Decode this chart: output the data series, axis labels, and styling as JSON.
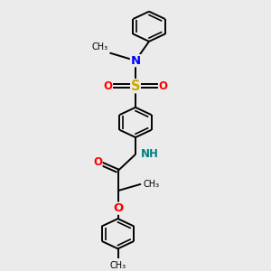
{
  "bg_color": "#ebebeb",
  "atom_colors": {
    "N": "#0000ff",
    "O": "#ff0000",
    "S": "#ccaa00",
    "NH": "#008080",
    "C": "#000000"
  },
  "line_color": "#000000",
  "line_width": 1.4,
  "font_size": 8.5,
  "figsize": [
    3.0,
    3.0
  ],
  "dpi": 100,
  "xlim": [
    0,
    10
  ],
  "ylim": [
    0,
    12
  ]
}
